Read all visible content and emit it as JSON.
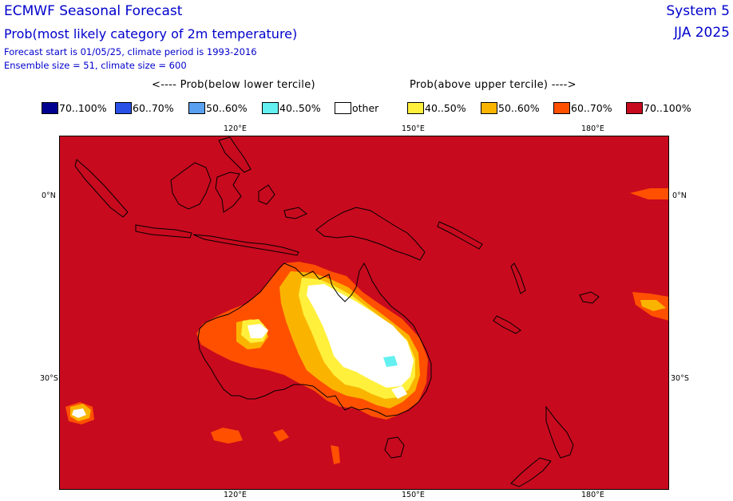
{
  "header": {
    "title": "ECMWF Seasonal Forecast",
    "subtitle": "Prob(most likely category of 2m temperature)",
    "forecast_line": "Forecast start is 01/05/25, climate period is 1993-2016",
    "ensemble_line": "Ensemble size = 51, climate size = 600",
    "system": "System 5",
    "season": "JJA 2025"
  },
  "legend": {
    "below_label": "<---- Prob(below lower tercile)",
    "above_label": "Prob(above upper tercile) ---->",
    "items": [
      {
        "label": "70..100%",
        "color": "#000090"
      },
      {
        "label": "60..70%",
        "color": "#2850e6"
      },
      {
        "label": "50..60%",
        "color": "#5aa0f0"
      },
      {
        "label": "40..50%",
        "color": "#64f0f0"
      },
      {
        "label": "other",
        "color": "#ffffff"
      },
      {
        "label": "40..50%",
        "color": "#fff03c"
      },
      {
        "label": "50..60%",
        "color": "#fab400"
      },
      {
        "label": "60..70%",
        "color": "#ff5000"
      },
      {
        "label": "70..100%",
        "color": "#c80a1e"
      }
    ]
  },
  "axes": {
    "lon_top": [
      "120°E",
      "150°E",
      "180°E"
    ],
    "lon_bottom": [
      "120°E",
      "150°E",
      "180°E"
    ],
    "lat_left": [
      "0°N",
      "30°S"
    ],
    "lat_right": [
      "0°N",
      "30°S"
    ]
  },
  "colors": {
    "background_field": "#c80a1e",
    "coastline": "#000000"
  }
}
